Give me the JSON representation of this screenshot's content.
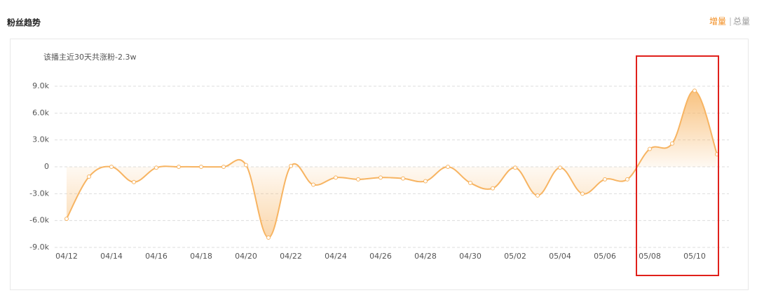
{
  "header": {
    "title": "粉丝趋势",
    "tabs": [
      "增量",
      "总量"
    ]
  },
  "chart_data": {
    "type": "line",
    "subtitle": "该播主近30天共涨粉-2.3w",
    "categories": [
      "04/12",
      null,
      "04/14",
      null,
      "04/16",
      null,
      "04/18",
      null,
      "04/20",
      null,
      "04/22",
      null,
      "04/24",
      null,
      "04/26",
      null,
      "04/28",
      null,
      "04/30",
      null,
      "05/02",
      null,
      "05/04",
      null,
      "05/06",
      null,
      "05/08",
      null,
      "05/10",
      null
    ],
    "values": [
      -5800,
      -1100,
      0,
      -1700,
      -100,
      0,
      0,
      0,
      200,
      -7900,
      100,
      -2000,
      -1200,
      -1400,
      -1200,
      -1300,
      -1600,
      0,
      -1800,
      -2400,
      -100,
      -3200,
      -100,
      -3000,
      -1400,
      -1400,
      2000,
      2600,
      8500,
      1400
    ],
    "color": "#f7b462",
    "ylim": [
      -9000,
      9000
    ],
    "yticks": [
      {
        "value": -9000,
        "label": "-9.0k"
      },
      {
        "value": -6000,
        "label": "-6.0k"
      },
      {
        "value": -3000,
        "label": "-3.0k"
      },
      0,
      {
        "value": 3000,
        "label": "3.0k"
      },
      {
        "value": 6000,
        "label": "6.0k"
      },
      {
        "value": 9000,
        "label": "9.0k"
      }
    ],
    "grid": true
  }
}
